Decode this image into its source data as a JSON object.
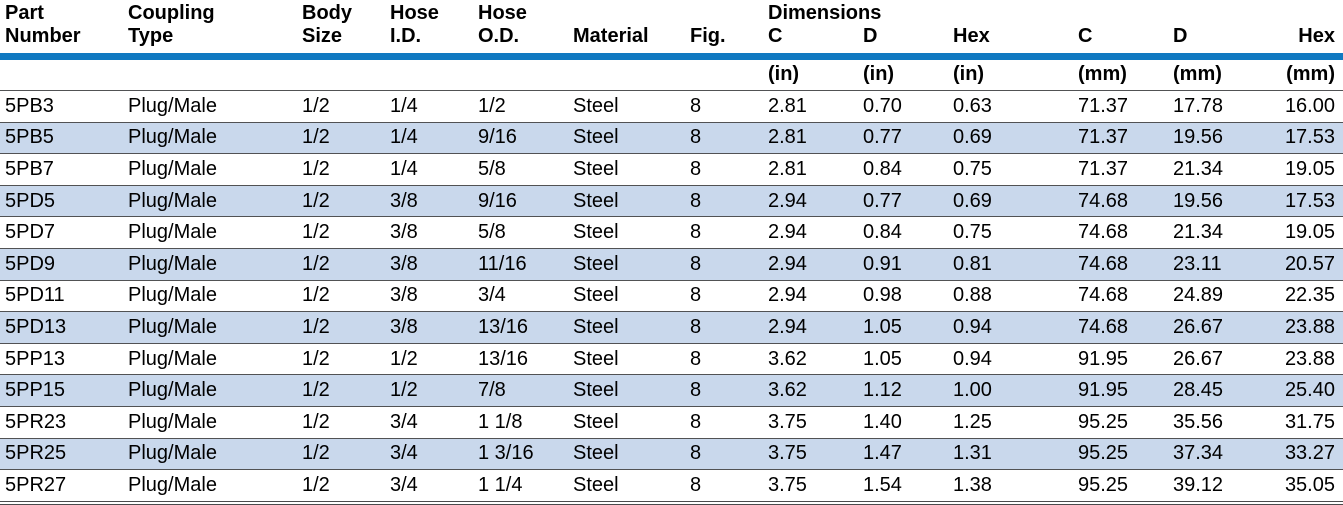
{
  "table": {
    "title": "Dimensions",
    "colors": {
      "header_rule_blue": "#1079c1",
      "row_shade_blue": "#c9d8ec",
      "row_separator_gray": "#515254",
      "text": "#000000"
    },
    "columns": [
      {
        "line1": "Part",
        "line2": "Number"
      },
      {
        "line1": "Coupling",
        "line2": "Type"
      },
      {
        "line1": "Body",
        "line2": "Size"
      },
      {
        "line1": "Hose",
        "line2": "I.D."
      },
      {
        "line1": "Hose",
        "line2": "O.D."
      },
      {
        "line1": "",
        "line2": "Material"
      },
      {
        "line1": "",
        "line2": "Fig."
      },
      {
        "line1": "Dimensions",
        "line2": "C"
      },
      {
        "line1": "",
        "line2": "D"
      },
      {
        "line1": "",
        "line2": "Hex"
      },
      {
        "line1": "",
        "line2": "C"
      },
      {
        "line1": "",
        "line2": "D"
      },
      {
        "line1": "",
        "line2": "Hex"
      }
    ],
    "units": [
      "",
      "",
      "",
      "",
      "",
      "",
      "",
      "(in)",
      "(in)",
      "(in)",
      "(mm)",
      "(mm)",
      "(mm)"
    ],
    "rows": [
      [
        "5PB3",
        "Plug/Male",
        "1/2",
        "1/4",
        "1/2",
        "Steel",
        "8",
        "2.81",
        "0.70",
        "0.63",
        "71.37",
        "17.78",
        "16.00"
      ],
      [
        "5PB5",
        "Plug/Male",
        "1/2",
        "1/4",
        "9/16",
        "Steel",
        "8",
        "2.81",
        "0.77",
        "0.69",
        "71.37",
        "19.56",
        "17.53"
      ],
      [
        "5PB7",
        "Plug/Male",
        "1/2",
        "1/4",
        "5/8",
        "Steel",
        "8",
        "2.81",
        "0.84",
        "0.75",
        "71.37",
        "21.34",
        "19.05"
      ],
      [
        "5PD5",
        "Plug/Male",
        "1/2",
        "3/8",
        "9/16",
        "Steel",
        "8",
        "2.94",
        "0.77",
        "0.69",
        "74.68",
        "19.56",
        "17.53"
      ],
      [
        "5PD7",
        "Plug/Male",
        "1/2",
        "3/8",
        "5/8",
        "Steel",
        "8",
        "2.94",
        "0.84",
        "0.75",
        "74.68",
        "21.34",
        "19.05"
      ],
      [
        "5PD9",
        "Plug/Male",
        "1/2",
        "3/8",
        "11/16",
        "Steel",
        "8",
        "2.94",
        "0.91",
        "0.81",
        "74.68",
        "23.11",
        "20.57"
      ],
      [
        "5PD11",
        "Plug/Male",
        "1/2",
        "3/8",
        "3/4",
        "Steel",
        "8",
        "2.94",
        "0.98",
        "0.88",
        "74.68",
        "24.89",
        "22.35"
      ],
      [
        "5PD13",
        "Plug/Male",
        "1/2",
        "3/8",
        "13/16",
        "Steel",
        "8",
        "2.94",
        "1.05",
        "0.94",
        "74.68",
        "26.67",
        "23.88"
      ],
      [
        "5PP13",
        "Plug/Male",
        "1/2",
        "1/2",
        "13/16",
        "Steel",
        "8",
        "3.62",
        "1.05",
        "0.94",
        "91.95",
        "26.67",
        "23.88"
      ],
      [
        "5PP15",
        "Plug/Male",
        "1/2",
        "1/2",
        "7/8",
        "Steel",
        "8",
        "3.62",
        "1.12",
        "1.00",
        "91.95",
        "28.45",
        "25.40"
      ],
      [
        "5PR23",
        "Plug/Male",
        "1/2",
        "3/4",
        "1 1/8",
        "Steel",
        "8",
        "3.75",
        "1.40",
        "1.25",
        "95.25",
        "35.56",
        "31.75"
      ],
      [
        "5PR25",
        "Plug/Male",
        "1/2",
        "3/4",
        "1 3/16",
        "Steel",
        "8",
        "3.75",
        "1.47",
        "1.31",
        "95.25",
        "37.34",
        "33.27"
      ],
      [
        "5PR27",
        "Plug/Male",
        "1/2",
        "3/4",
        "1 1/4",
        "Steel",
        "8",
        "3.75",
        "1.54",
        "1.38",
        "95.25",
        "39.12",
        "35.05"
      ]
    ]
  }
}
